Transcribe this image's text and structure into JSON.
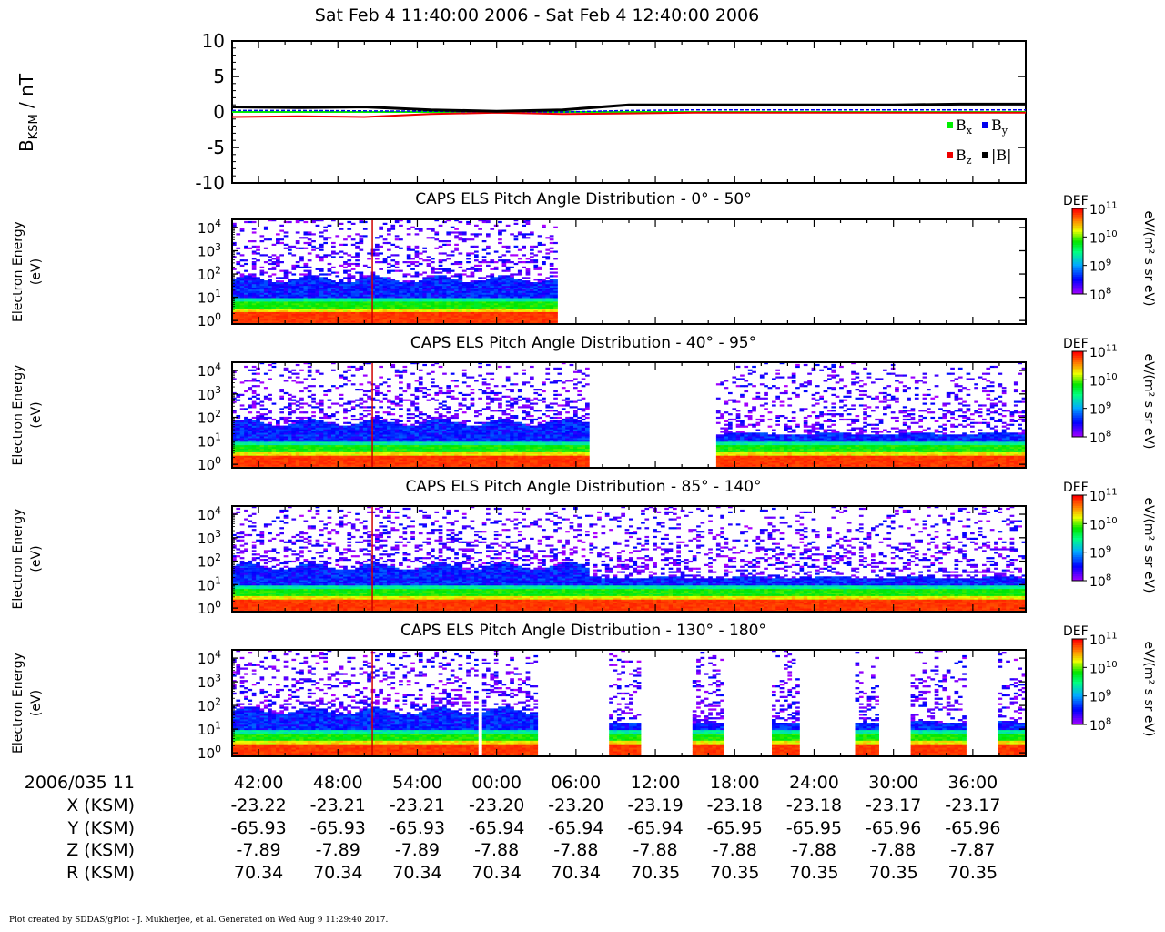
{
  "title": "Sat Feb 4 11:40:00 2006 - Sat Feb 4 12:40:00 2006",
  "footer": "Plot created by SDDAS/gPlot - J. Mukherjee, et al.  Generated on Wed Aug 9 11:29:40 2017.",
  "colors": {
    "bx": "#00ee00",
    "by": "#0000ee",
    "bz": "#ee0000",
    "btot": "#000000",
    "marker": "#d00000"
  },
  "panels": [
    {
      "title": "CAPS ELS Pitch Angle Distribution - 0° - 50°",
      "coverage_end_min": 24.5,
      "gaps_min": [],
      "background_ceiling_eV": 50
    },
    {
      "title": "CAPS ELS Pitch Angle Distribution - 40° - 95°",
      "coverage_end_min": 60,
      "gaps_min": [
        27.0,
        36.5
      ],
      "background_ceiling_eV": 20
    },
    {
      "title": "CAPS ELS Pitch Angle Distribution - 85° - 140°",
      "coverage_end_min": 60,
      "gaps_min": [],
      "background_ceiling_eV": 20
    },
    {
      "title": "CAPS ELS Pitch Angle Distribution - 130° - 180°",
      "coverage_end_min": 60,
      "gaps_min": [
        18.5,
        19.0,
        23.2,
        28.5,
        30.8,
        34.8,
        37.2,
        40.7,
        42.8,
        47.0,
        48.8,
        51.2,
        55.6,
        57.8
      ],
      "background_ceiling_eV": 20
    }
  ],
  "spectrogram_common": {
    "ylabel_line1": "Electron Energy",
    "ylabel_line2": "(eV)",
    "yticks": [
      {
        "base": "10",
        "exp": "4"
      },
      {
        "base": "10",
        "exp": "3"
      },
      {
        "base": "10",
        "exp": "2"
      },
      {
        "base": "10",
        "exp": "1"
      },
      {
        "base": "10",
        "exp": "0"
      }
    ],
    "colorbar_title": "DEF",
    "colorbar_unit": "eV/(m² s sr eV)",
    "colorbar_ticks": [
      {
        "base": "10",
        "exp": "11"
      },
      {
        "base": "10",
        "exp": "10"
      },
      {
        "base": "10",
        "exp": "9"
      },
      {
        "base": "10",
        "exp": "8"
      }
    ],
    "colorbar_range": [
      8,
      11
    ],
    "marker_min": 10.6
  },
  "chart_data": {
    "type": "line",
    "ylabel_main": "B",
    "ylabel_sub": "KSM",
    "ylabel_unit": " / nT",
    "ylim": [
      -10,
      10
    ],
    "yticks": [
      "10",
      "5",
      "0",
      "-5",
      "-10"
    ],
    "ytick_values": [
      10,
      5,
      0,
      -5,
      -10
    ],
    "x_minutes": [
      0,
      5,
      10,
      15,
      20,
      25,
      30,
      35,
      40,
      45,
      50,
      55,
      60
    ],
    "series": [
      {
        "name": "B",
        "sub": "x",
        "color": "#00ee00",
        "values": [
          0.0,
          0.0,
          0.0,
          0.0,
          0.0,
          0.0,
          0.0,
          0.0,
          0.0,
          0.0,
          0.0,
          0.0,
          0.0
        ]
      },
      {
        "name": "B",
        "sub": "y",
        "color": "#0000ee",
        "values": [
          0.2,
          0.2,
          0.15,
          0.1,
          0.0,
          0.0,
          0.2,
          0.3,
          0.3,
          0.3,
          0.3,
          0.3,
          0.3
        ]
      },
      {
        "name": "B",
        "sub": "z",
        "color": "#ee0000",
        "values": [
          -0.7,
          -0.6,
          -0.7,
          -0.3,
          -0.1,
          -0.3,
          -0.2,
          -0.1,
          -0.1,
          -0.1,
          -0.1,
          -0.1,
          -0.1
        ]
      },
      {
        "name": "|B|",
        "sub": "",
        "color": "#000000",
        "values": [
          0.7,
          0.6,
          0.7,
          0.3,
          0.1,
          0.3,
          1.0,
          1.0,
          1.0,
          1.0,
          1.0,
          1.1,
          1.1
        ]
      }
    ]
  },
  "ephemeris": {
    "date_label": "2006/035 11",
    "time_ticks": [
      "42:00",
      "48:00",
      "54:00",
      "00:00",
      "06:00",
      "12:00",
      "18:00",
      "24:00",
      "30:00",
      "36:00"
    ],
    "tick_minutes": [
      2,
      8,
      14,
      20,
      26,
      32,
      38,
      44,
      50,
      56
    ],
    "rows": [
      {
        "label": "X (KSM)",
        "values": [
          "-23.22",
          "-23.21",
          "-23.21",
          "-23.20",
          "-23.20",
          "-23.19",
          "-23.18",
          "-23.18",
          "-23.17",
          "-23.17"
        ]
      },
      {
        "label": "Y (KSM)",
        "values": [
          "-65.93",
          "-65.93",
          "-65.93",
          "-65.94",
          "-65.94",
          "-65.94",
          "-65.95",
          "-65.95",
          "-65.96",
          "-65.96"
        ]
      },
      {
        "label": "Z (KSM)",
        "values": [
          "-7.89",
          "-7.89",
          "-7.89",
          "-7.88",
          "-7.88",
          "-7.88",
          "-7.88",
          "-7.88",
          "-7.88",
          "-7.87"
        ]
      },
      {
        "label": "R (KSM)",
        "values": [
          "70.34",
          "70.34",
          "70.34",
          "70.34",
          "70.34",
          "70.35",
          "70.35",
          "70.35",
          "70.35",
          "70.35"
        ]
      }
    ]
  }
}
